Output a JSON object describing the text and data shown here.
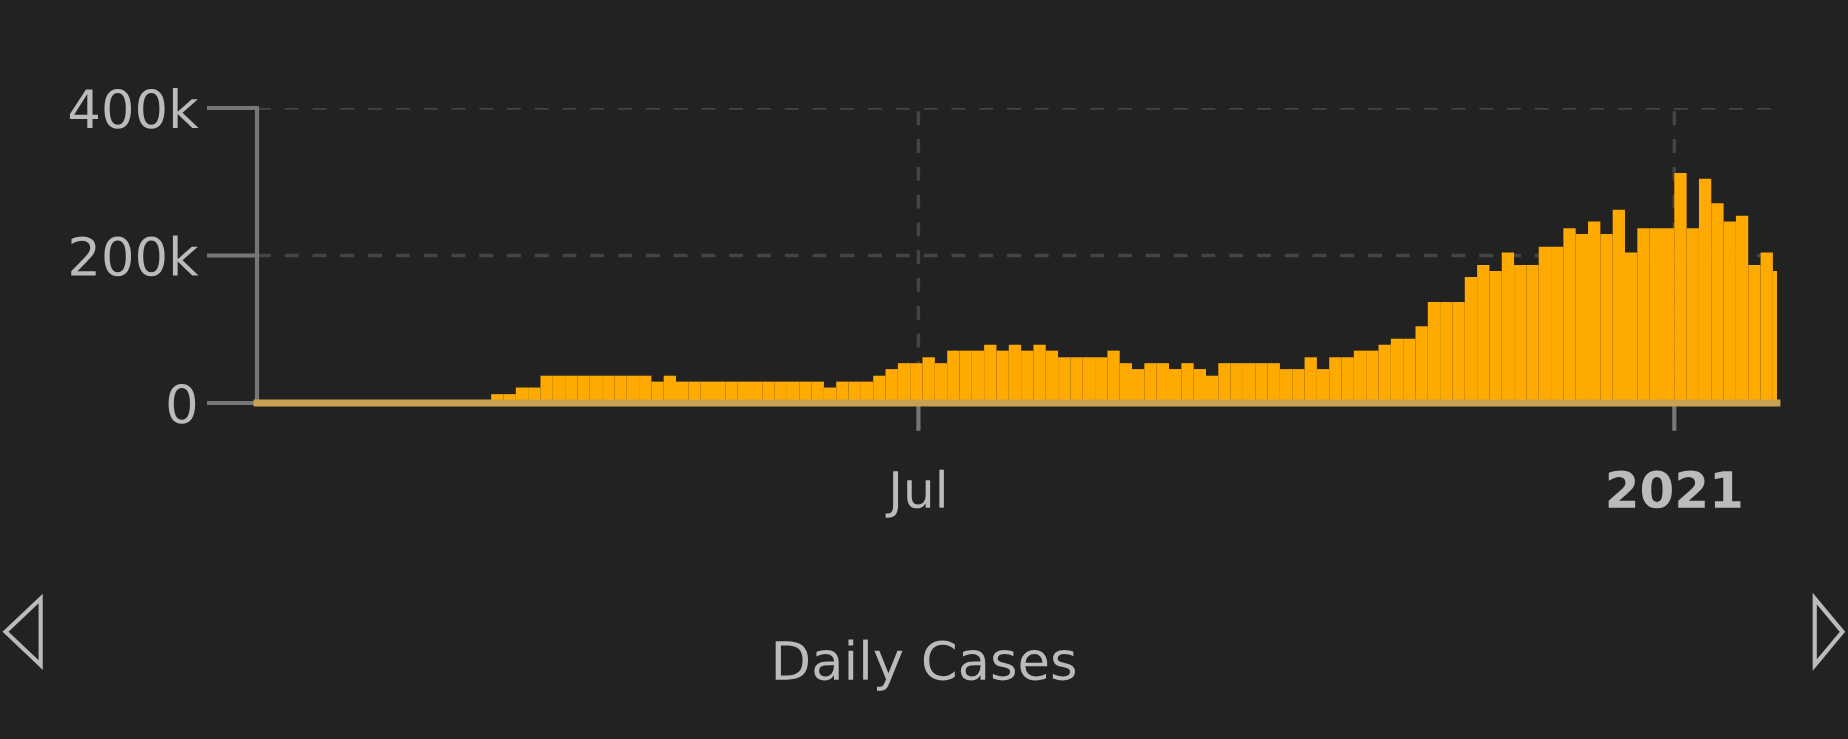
{
  "chart_data": {
    "type": "bar",
    "title": "Daily Cases",
    "x": [
      "2020-01-22",
      "2020-01-25",
      "2020-01-28",
      "2020-01-31",
      "2020-02-03",
      "2020-02-06",
      "2020-02-09",
      "2020-02-12",
      "2020-02-15",
      "2020-02-18",
      "2020-02-21",
      "2020-02-24",
      "2020-02-27",
      "2020-03-01",
      "2020-03-04",
      "2020-03-07",
      "2020-03-10",
      "2020-03-13",
      "2020-03-16",
      "2020-03-19",
      "2020-03-22",
      "2020-03-25",
      "2020-03-28",
      "2020-03-31",
      "2020-04-03",
      "2020-04-06",
      "2020-04-09",
      "2020-04-12",
      "2020-04-15",
      "2020-04-18",
      "2020-04-21",
      "2020-04-24",
      "2020-04-27",
      "2020-04-30",
      "2020-05-03",
      "2020-05-06",
      "2020-05-09",
      "2020-05-12",
      "2020-05-15",
      "2020-05-18",
      "2020-05-21",
      "2020-05-24",
      "2020-05-27",
      "2020-05-30",
      "2020-06-02",
      "2020-06-05",
      "2020-06-08",
      "2020-06-11",
      "2020-06-14",
      "2020-06-17",
      "2020-06-20",
      "2020-06-23",
      "2020-06-26",
      "2020-06-29",
      "2020-07-02",
      "2020-07-05",
      "2020-07-08",
      "2020-07-11",
      "2020-07-14",
      "2020-07-17",
      "2020-07-20",
      "2020-07-23",
      "2020-07-26",
      "2020-07-29",
      "2020-08-01",
      "2020-08-04",
      "2020-08-07",
      "2020-08-10",
      "2020-08-13",
      "2020-08-16",
      "2020-08-19",
      "2020-08-22",
      "2020-08-25",
      "2020-08-28",
      "2020-08-31",
      "2020-09-03",
      "2020-09-06",
      "2020-09-09",
      "2020-09-12",
      "2020-09-15",
      "2020-09-18",
      "2020-09-21",
      "2020-09-24",
      "2020-09-27",
      "2020-09-30",
      "2020-10-03",
      "2020-10-06",
      "2020-10-09",
      "2020-10-12",
      "2020-10-15",
      "2020-10-18",
      "2020-10-21",
      "2020-10-24",
      "2020-10-27",
      "2020-10-30",
      "2020-11-02",
      "2020-11-05",
      "2020-11-08",
      "2020-11-11",
      "2020-11-14",
      "2020-11-17",
      "2020-11-20",
      "2020-11-23",
      "2020-11-26",
      "2020-11-29",
      "2020-12-02",
      "2020-12-05",
      "2020-12-08",
      "2020-12-11",
      "2020-12-14",
      "2020-12-17",
      "2020-12-20",
      "2020-12-23",
      "2020-12-26",
      "2020-12-29",
      "2021-01-01",
      "2021-01-04",
      "2021-01-07",
      "2021-01-10",
      "2021-01-13",
      "2021-01-16",
      "2021-01-19",
      "2021-01-22",
      "2021-01-25"
    ],
    "series": [
      {
        "color": "#ffaa00",
        "values": [
          0,
          0,
          0,
          0,
          0,
          0,
          0,
          0,
          0,
          0,
          0,
          0,
          0,
          0,
          0,
          0,
          0,
          0,
          0,
          12000,
          12000,
          21000,
          21000,
          37000,
          37000,
          37000,
          37000,
          37000,
          37000,
          37000,
          37000,
          37000,
          29000,
          37000,
          29000,
          29000,
          29000,
          29000,
          29000,
          29000,
          29000,
          29000,
          29000,
          29000,
          29000,
          29000,
          21000,
          29000,
          29000,
          29000,
          37000,
          46000,
          54000,
          54000,
          62000,
          54000,
          71000,
          71000,
          71000,
          79000,
          71000,
          79000,
          71000,
          79000,
          71000,
          62000,
          62000,
          62000,
          62000,
          71000,
          54000,
          46000,
          54000,
          54000,
          46000,
          54000,
          46000,
          37000,
          54000,
          54000,
          54000,
          54000,
          54000,
          46000,
          46000,
          62000,
          46000,
          62000,
          62000,
          71000,
          71000,
          79000,
          87000,
          87000,
          104000,
          137000,
          137000,
          137000,
          171000,
          187000,
          179000,
          204000,
          187000,
          187000,
          212000,
          212000,
          237000,
          229000,
          246000,
          229000,
          262000,
          204000,
          237000,
          237000,
          237000,
          312000,
          237000,
          304000,
          271000,
          246000,
          254000,
          187000,
          204000,
          179000
        ]
      }
    ],
    "xlim": [
      "2020-01-22",
      "2021-01-26"
    ],
    "xticks": [
      {
        "value": "2020-07-01",
        "label": "Jul"
      },
      {
        "value": "2021-01-01",
        "label": "2021"
      }
    ],
    "ylim": [
      0,
      400000
    ],
    "yticks": [
      0,
      {
        "value": 200000,
        "label": "200k"
      },
      {
        "value": 400000,
        "label": "400k"
      }
    ],
    "grid": true,
    "legend": false
  }
}
